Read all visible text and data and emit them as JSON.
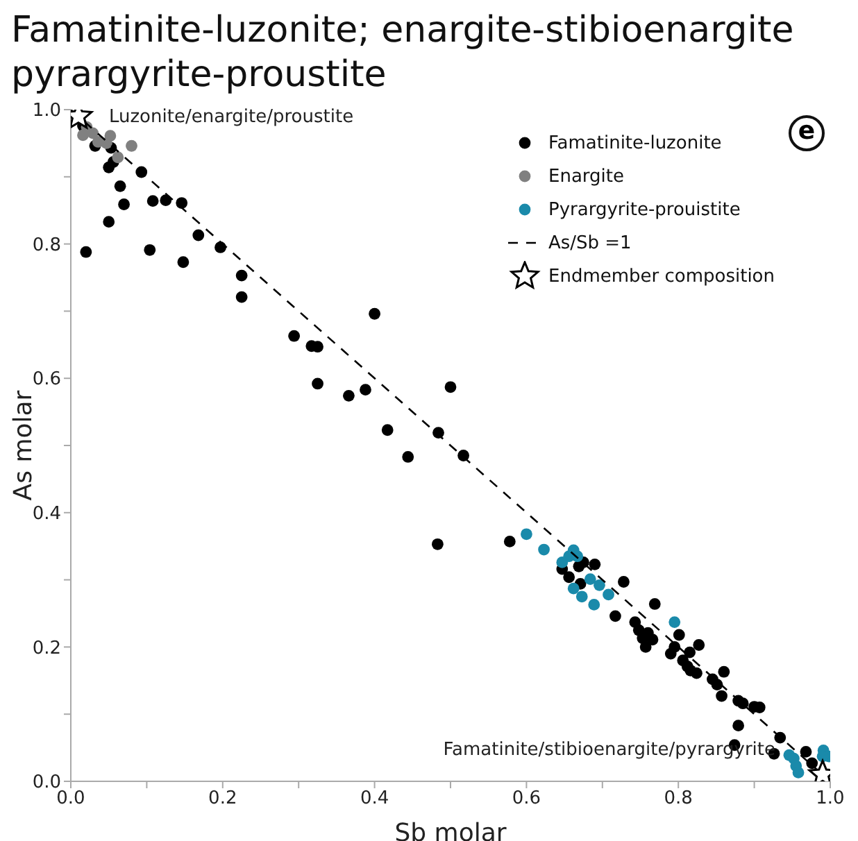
{
  "chart_data": {
    "type": "scatter",
    "title": "Famatinite-luzonite; enargite-stibioenargite pyrargyrite-proustite",
    "xlabel": "Sb molar",
    "ylabel": "As molar",
    "xlim": [
      0,
      1
    ],
    "ylim": [
      0,
      1
    ],
    "xticks": [
      {
        "value": 0,
        "label": "0.0"
      },
      {
        "value": 0.1,
        "label": null
      },
      0.2,
      {
        "value": 0.3,
        "label": null
      },
      0.4,
      {
        "value": 0.5,
        "label": null
      },
      0.6,
      {
        "value": 0.7,
        "label": null
      },
      0.8,
      {
        "value": 0.9,
        "label": null
      },
      {
        "value": 1,
        "label": "1.0"
      }
    ],
    "yticks": [
      {
        "value": 0,
        "label": "0.0"
      },
      {
        "value": 0.1,
        "label": null
      },
      0.2,
      {
        "value": 0.3,
        "label": null
      },
      0.4,
      {
        "value": 0.5,
        "label": null
      },
      0.6,
      {
        "value": 0.7,
        "label": null
      },
      0.8,
      {
        "value": 0.9,
        "label": null
      },
      {
        "value": 1,
        "label": "1.0"
      }
    ],
    "grid": false,
    "legend": "top right",
    "marker": "circle",
    "annotations": [
      "e",
      {
        "text": "Luzonite/enargite/proustite",
        "x": 0.01,
        "y": 0.99
      },
      {
        "text": "Famatinite/stibioenargite/pyrargyrite",
        "x": 0.99,
        "y": 0.01
      }
    ],
    "series": [
      {
        "name": "Famatinite-luzonite",
        "color": "#000000",
        "x": [
          0.016,
          0.032,
          0.053,
          0.05,
          0.056,
          0.093,
          0.065,
          0.07,
          0.05,
          0.02,
          0.108,
          0.125,
          0.146,
          0.104,
          0.148,
          0.168,
          0.197,
          0.225,
          0.225,
          0.294,
          0.317,
          0.325,
          0.4,
          0.325,
          0.366,
          0.388,
          0.5,
          0.417,
          0.444,
          0.484,
          0.517,
          0.483,
          0.578,
          0.675,
          0.669,
          0.69,
          0.647,
          0.656,
          0.671,
          0.728,
          0.717,
          0.769,
          0.743,
          0.748,
          0.76,
          0.753,
          0.766,
          0.801,
          0.757,
          0.795,
          0.827,
          0.79,
          0.815,
          0.806,
          0.812,
          0.824,
          0.816,
          0.845,
          0.86,
          0.851,
          0.857,
          0.879,
          0.885,
          0.9,
          0.907,
          0.879,
          0.874,
          0.934,
          0.926,
          0.968,
          0.976
        ],
        "values": [
          0.976,
          0.946,
          0.943,
          0.914,
          0.922,
          0.907,
          0.886,
          0.859,
          0.833,
          0.788,
          0.864,
          0.865,
          0.861,
          0.791,
          0.773,
          0.813,
          0.795,
          0.753,
          0.721,
          0.663,
          0.648,
          0.647,
          0.696,
          0.592,
          0.574,
          0.583,
          0.587,
          0.523,
          0.483,
          0.519,
          0.485,
          0.353,
          0.357,
          0.326,
          0.32,
          0.323,
          0.316,
          0.304,
          0.294,
          0.297,
          0.246,
          0.264,
          0.237,
          0.225,
          0.221,
          0.213,
          0.211,
          0.218,
          0.2,
          0.2,
          0.203,
          0.19,
          0.192,
          0.18,
          0.171,
          0.161,
          0.165,
          0.152,
          0.163,
          0.144,
          0.127,
          0.12,
          0.116,
          0.111,
          0.11,
          0.083,
          0.054,
          0.065,
          0.041,
          0.044,
          0.027
        ]
      },
      {
        "name": "Enargite",
        "color": "#808080",
        "x": [
          0.016,
          0.029,
          0.052,
          0.047,
          0.08,
          0.062,
          0.021,
          0.036
        ],
        "values": [
          0.962,
          0.965,
          0.961,
          0.95,
          0.946,
          0.929,
          0.974,
          0.952
        ]
      },
      {
        "name": "Pyrargyrite-prouistite",
        "color": "#1a8aaa",
        "x": [
          0.6,
          0.623,
          0.662,
          0.656,
          0.667,
          0.647,
          0.684,
          0.696,
          0.662,
          0.673,
          0.708,
          0.689,
          0.795,
          0.946,
          0.952,
          0.955,
          0.958,
          0.991,
          0.998,
          0.99
        ],
        "values": [
          0.368,
          0.345,
          0.344,
          0.335,
          0.335,
          0.326,
          0.301,
          0.292,
          0.287,
          0.275,
          0.278,
          0.263,
          0.237,
          0.039,
          0.034,
          0.023,
          0.013,
          0.046,
          0.037,
          0.037
        ]
      },
      {
        "name": "As/Sb =1",
        "type": "line",
        "line_style": "dashed",
        "marker": "none",
        "color": "#000000",
        "x": [
          0,
          1
        ],
        "values": [
          1,
          0
        ]
      },
      {
        "name": "Endmember composition",
        "marker": "star",
        "color": "#000000",
        "x": [
          0.01,
          0.99
        ],
        "values": [
          0.99,
          0.01
        ]
      }
    ]
  }
}
